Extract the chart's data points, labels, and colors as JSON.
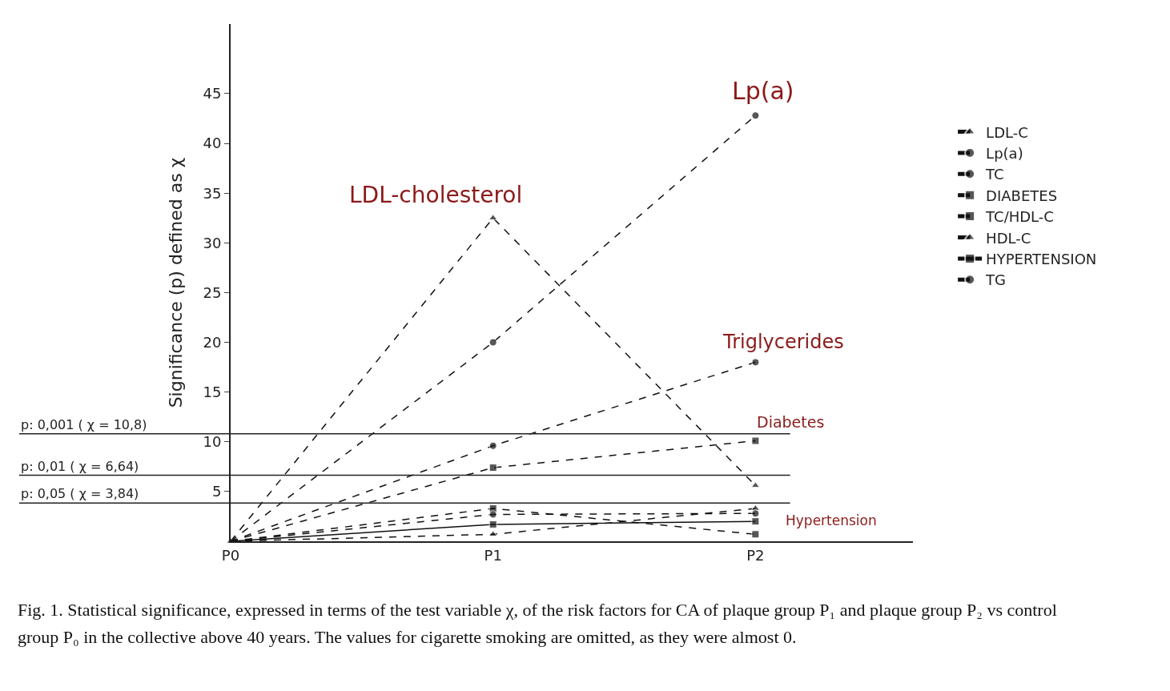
{
  "chart_data": {
    "type": "line",
    "ylabel": "Significance (p) defined as χ",
    "categories": [
      "P0",
      "P1",
      "P2"
    ],
    "series": [
      {
        "name": "LDL-C",
        "color": "#111111",
        "marker": "triangle",
        "line_style": "dashed",
        "values": [
          0,
          32.5,
          5.6
        ]
      },
      {
        "name": "Lp(a)",
        "color": "#111111",
        "marker": "circle",
        "line_style": "dashed",
        "values": [
          0,
          20,
          42.8
        ]
      },
      {
        "name": "TC",
        "color": "#111111",
        "marker": "circle",
        "line_style": "dashed",
        "values": [
          0,
          9.6,
          18
        ]
      },
      {
        "name": "DIABETES",
        "color": "#111111",
        "marker": "square",
        "line_style": "dashed",
        "values": [
          0,
          7.4,
          10.1
        ]
      },
      {
        "name": "TC/HDL-C",
        "color": "#111111",
        "marker": "square",
        "line_style": "dashed",
        "values": [
          0,
          3.3,
          0.7
        ]
      },
      {
        "name": "HDL-C",
        "color": "#111111",
        "marker": "triangle",
        "line_style": "dashed",
        "values": [
          0,
          0.7,
          3.3
        ]
      },
      {
        "name": "HYPERTENSION",
        "color": "#111111",
        "marker": "square",
        "line_style": "solid",
        "values": [
          0,
          1.7,
          2.0
        ]
      },
      {
        "name": "TG",
        "color": "#111111",
        "marker": "circle",
        "line_style": "dashed",
        "values": [
          0,
          2.7,
          2.8
        ]
      }
    ],
    "ylim": [
      0,
      52
    ],
    "yticks": [
      5,
      10,
      15,
      20,
      25,
      30,
      35,
      40,
      45
    ],
    "grid": false,
    "legend": "top right",
    "ref_lines": [
      {
        "axis": "y",
        "value": 10.8,
        "label": "p: 0,001 ( χ = 10,8)"
      },
      {
        "axis": "y",
        "value": 6.64,
        "label": "p: 0,01 ( χ = 6,64)"
      },
      {
        "axis": "y",
        "value": 3.84,
        "label": "p: 0,05 ( χ = 3,84)"
      }
    ],
    "annotations": [
      "Lp(a)",
      "LDL-cholesterol",
      "Triglycerides",
      "Diabetes",
      "Hypertension",
      "Fig. 1. Statistical significance, expressed in terms of the test variable χ, of the risk factors for CA of plaque group P₁ and plaque group P₂ vs control group P₀ in the collective above 40 years. The values for cigarette smoking are omitted, as they were almost 0."
    ]
  }
}
